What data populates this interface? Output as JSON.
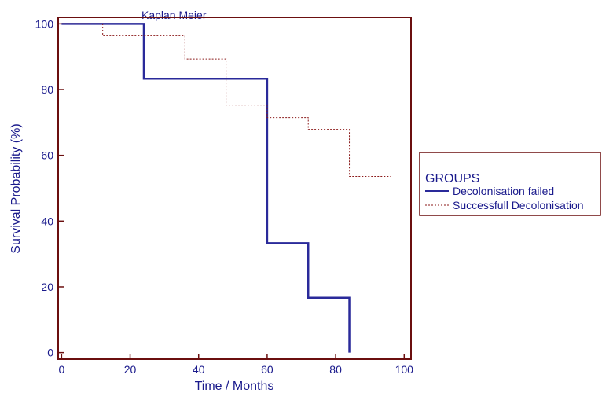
{
  "chart_data": {
    "type": "line",
    "title": "Kaplan Meier",
    "xlabel": "Time / Months",
    "ylabel": "Survival Probability  (%)",
    "xlim": [
      -1,
      102
    ],
    "ylim": [
      -2,
      102
    ],
    "xticks": [
      0,
      20,
      40,
      60,
      80,
      100
    ],
    "yticks": [
      0,
      20,
      40,
      60,
      80,
      100
    ],
    "grid": false,
    "legend_position": "right",
    "legend_title": "GROUPS",
    "series": [
      {
        "name": "Decolonisation failed",
        "style": "solid",
        "color": "#2a2a9a",
        "x": [
          0,
          24,
          60,
          72,
          84,
          84
        ],
        "y": [
          100,
          83.3,
          33.3,
          16.7,
          16.7,
          0
        ]
      },
      {
        "name": "Successfull Decolonisation",
        "style": "dashed",
        "color": "#8b1a1a",
        "x": [
          0,
          12,
          36,
          48,
          60,
          72,
          84,
          96
        ],
        "y": [
          100,
          96.4,
          89.3,
          75.3,
          71.5,
          67.9,
          53.6,
          53.6
        ]
      }
    ]
  },
  "colors": {
    "frame": "#6b0f0f",
    "text": "#1a1a8c"
  }
}
